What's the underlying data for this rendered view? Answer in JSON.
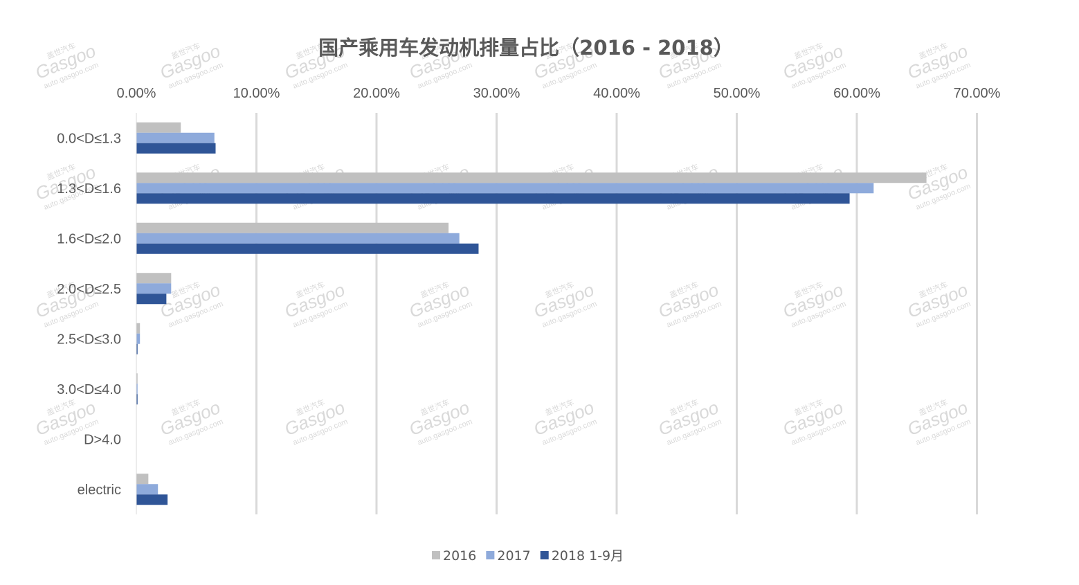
{
  "chart_data": {
    "type": "bar",
    "orientation": "horizontal",
    "title": "国产乘用车发动机排量占比（2016 - 2018）",
    "categories": [
      "0.0<D≤1.3",
      "1.3<D≤1.6",
      "1.6<D≤2.0",
      "2.0<D≤2.5",
      "2.5<D≤3.0",
      "3.0<D≤4.0",
      "D>4.0",
      "electric"
    ],
    "series": [
      {
        "name": "2016",
        "color": "#c0c0c0",
        "values": [
          3.7,
          65.8,
          26.0,
          2.9,
          0.3,
          0.1,
          0.0,
          1.0
        ]
      },
      {
        "name": "2017",
        "color": "#8eaadb",
        "values": [
          6.5,
          61.4,
          26.9,
          2.9,
          0.3,
          0.1,
          0.0,
          1.8
        ]
      },
      {
        "name": "2018 1-9月",
        "color": "#2f5597",
        "values": [
          6.6,
          59.4,
          28.5,
          2.5,
          0.1,
          0.1,
          0.0,
          2.6
        ]
      }
    ],
    "xticks": [
      "0.00%",
      "10.00%",
      "20.00%",
      "30.00%",
      "40.00%",
      "50.00%",
      "60.00%",
      "70.00%"
    ],
    "xlim": [
      0,
      70
    ],
    "x_axis_position": "top",
    "grid": true,
    "legend_position": "bottom"
  },
  "watermark": {
    "brand": "Gasgoo",
    "cn": "盖世汽车",
    "url": "auto.gasgoo.com"
  }
}
